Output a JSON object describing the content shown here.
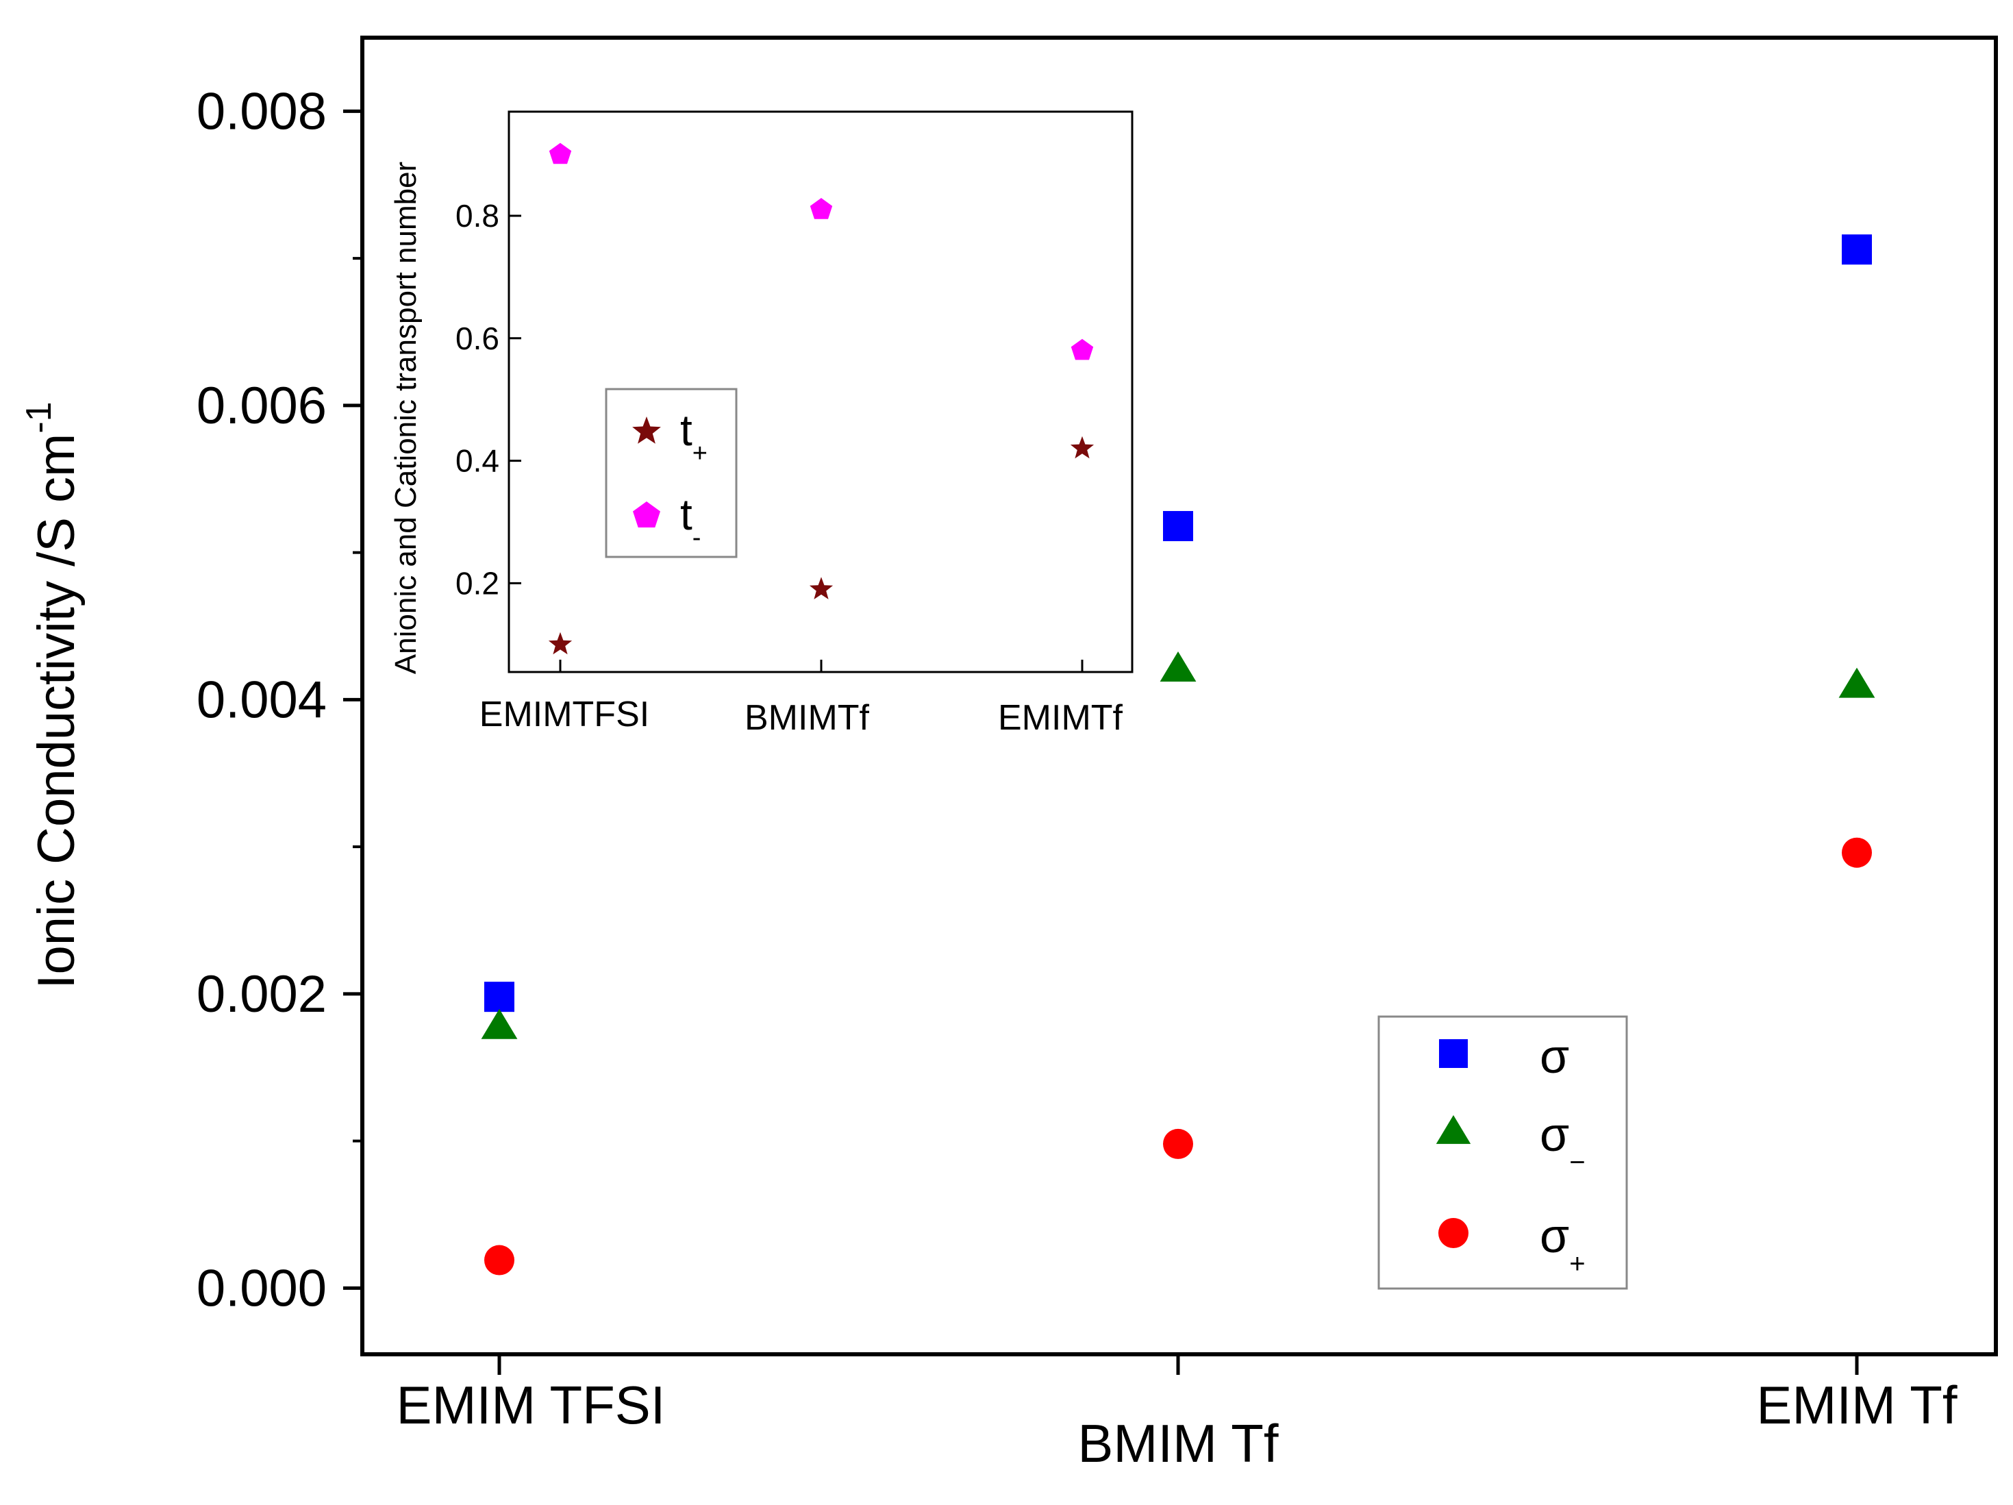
{
  "chart_data": [
    {
      "type": "scatter",
      "categories": [
        "EMIM TFSI",
        "BMIM Tf",
        "EMIM Tf"
      ],
      "ylabel_main": "Ionic Conductivity /S cm",
      "ylabel_sup": "-1",
      "xlabel": "",
      "ylim": [
        -0.00045,
        0.0085
      ],
      "yticks": [
        "0.000",
        "0.002",
        "0.004",
        "0.006",
        "0.008"
      ],
      "ytick_values": [
        0,
        0.002,
        0.004,
        0.006,
        0.008
      ],
      "legend_position": "bottom-right",
      "series": [
        {
          "name": "σ",
          "sub": "",
          "marker": "square",
          "color": "#0000ff",
          "values": [
            0.00198,
            0.00518,
            0.00706
          ]
        },
        {
          "name": "σ",
          "sub": "−",
          "marker": "triangle",
          "color": "#007a00",
          "values": [
            0.00178,
            0.00421,
            0.0041
          ]
        },
        {
          "name": "σ",
          "sub": "+",
          "marker": "circle",
          "color": "#ff0000",
          "values": [
            0.00019,
            0.00098,
            0.00296
          ]
        }
      ]
    },
    {
      "type": "scatter",
      "categories": [
        "EMIMTFSI",
        "BMIMTf",
        "EMIMTf"
      ],
      "ylabel": "Anionic and Cationic transport number",
      "xlabel": "",
      "ylim": [
        0.055,
        0.97
      ],
      "yticks": [
        "0.2",
        "0.4",
        "0.6",
        "0.8"
      ],
      "ytick_values": [
        0.2,
        0.4,
        0.6,
        0.8
      ],
      "legend_position": "middle-left",
      "series": [
        {
          "name": "t",
          "sub": "+",
          "marker": "star",
          "color": "#7a0a0a",
          "values": [
            0.1,
            0.19,
            0.42
          ]
        },
        {
          "name": "t",
          "sub": "-",
          "marker": "pentagon",
          "color": "#ff00ff",
          "values": [
            0.9,
            0.81,
            0.58
          ]
        }
      ]
    }
  ]
}
